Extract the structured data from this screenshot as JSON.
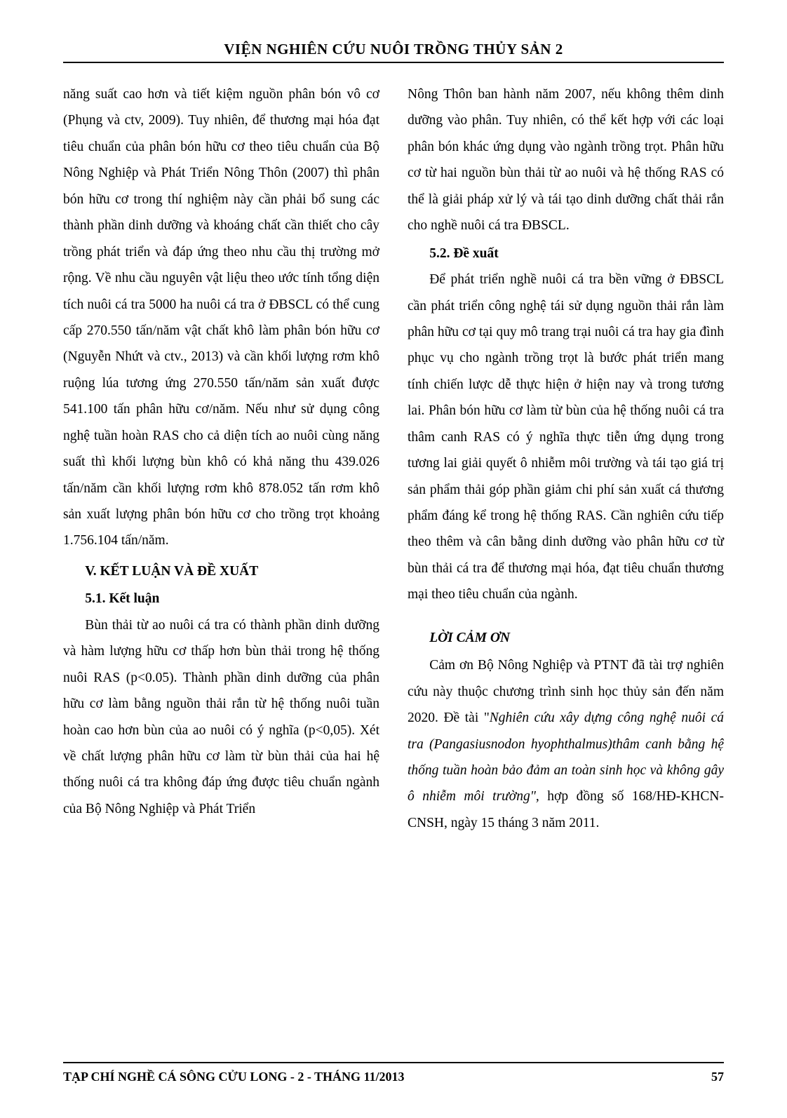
{
  "header": {
    "title": "VIỆN NGHIÊN CỨU NUÔI TRỒNG THỦY SẢN 2"
  },
  "left_col": {
    "p1": "năng suất cao hơn và tiết kiệm nguồn phân bón vô cơ (Phụng và ctv, 2009). Tuy nhiên, để thương mại hóa đạt tiêu chuẩn của phân bón hữu cơ theo tiêu chuẩn của Bộ Nông Nghiệp và Phát Triển Nông Thôn (2007) thì phân bón hữu cơ trong thí nghiệm này cần phải bổ sung các thành phần dinh dưỡng và khoáng chất cần thiết cho cây trồng phát triển và đáp ứng theo nhu cầu thị trường mở rộng. Về nhu cầu nguyên vật liệu theo ước tính tổng diện tích nuôi cá tra 5000 ha nuôi cá tra ở ĐBSCL có thể cung cấp 270.550 tấn/năm vật chất khô làm phân bón hữu cơ (Nguyễn Nhứt và ctv., 2013) và cần khối lượng rơm khô ruộng lúa tương ứng 270.550 tấn/năm sản xuất được 541.100 tấn phân hữu cơ/năm. Nếu như sử dụng công nghệ tuần hoàn RAS cho cả diện tích ao nuôi cùng năng suất thì khối lượng bùn khô có khả năng thu 439.026 tấn/năm cần khối lượng rơm khô 878.052 tấn rơm khô sản xuất lượng phân bón hữu cơ cho trồng trọt khoảng 1.756.104 tấn/năm.",
    "h5": "V. KẾT LUẬN VÀ ĐỀ XUẤT",
    "h51": "5.1. Kết luận",
    "p2": "Bùn thải từ ao nuôi cá tra có thành phần dinh dưỡng và hàm lượng hữu cơ thấp hơn bùn thải trong hệ thống nuôi RAS (p<0.05). Thành phần dinh dưỡng của phân hữu cơ làm bằng nguồn thải rắn từ hệ thống nuôi tuần hoàn cao hơn bùn của ao nuôi có ý nghĩa (p<0,05). Xét về chất lượng phân hữu cơ làm từ bùn thải của hai hệ thống nuôi cá tra không đáp ứng được tiêu chuẩn ngành của Bộ Nông Nghiệp và Phát Triển"
  },
  "right_col": {
    "p1": "Nông Thôn ban hành năm 2007, nếu không thêm dinh dưỡng vào phân. Tuy nhiên, có thể kết hợp với các loại phân bón khác ứng dụng vào ngành trồng trọt. Phân hữu cơ từ hai nguồn bùn thải từ ao nuôi và hệ thống RAS có thể là giải pháp xử lý và tái tạo dinh dưỡng chất thải rắn cho nghề nuôi cá tra ĐBSCL.",
    "h52": "5.2. Đề xuất",
    "p2": "Để phát triển nghề nuôi cá tra bền vững ở ĐBSCL cần phát triển công nghệ tái sử dụng nguồn thải rắn làm phân hữu cơ tại quy mô trang trại nuôi cá tra hay gia đình phục vụ cho ngành trồng trọt là bước phát triển mang tính chiến lược dễ thực hiện ở hiện nay và trong tương lai. Phân bón hữu cơ làm từ bùn của hệ thống nuôi cá tra thâm canh RAS có ý nghĩa thực tiễn ứng dụng trong tương lai giải quyết ô nhiễm môi trường và tái tạo giá trị sản phẩm thải góp phần giảm chi phí sản xuất cá thương phẩm đáng kể trong hệ thống RAS. Cần nghiên cứu tiếp theo thêm và cân bằng dinh dưỡng vào phân hữu cơ từ bùn thải cá tra để thương mại hóa, đạt tiêu chuẩn thương mại theo tiêu chuẩn của ngành.",
    "ack_heading": "LỜI CẢM ƠN",
    "ack_pre": "Cảm ơn Bộ Nông Nghiệp và PTNT đã tài trợ nghiên cứu này thuộc chương trình sinh học thủy sản đến năm 2020. Đề tài \"",
    "ack_italic": "Nghiên cứu xây dựng công nghệ nuôi cá tra (Pangasiusnodon hyophthalmus)thâm canh bằng hệ thống tuần hoàn bảo đảm an toàn sinh học và không gây ô nhiễm môi trường\",",
    "ack_post": " hợp đồng số 168/HĐ-KHCN-CNSH, ngày 15 tháng 3 năm 2011."
  },
  "footer": {
    "journal": "TẠP CHÍ NGHỀ CÁ SÔNG CỬU LONG - 2 - THÁNG 11/2013",
    "page": "57"
  },
  "style": {
    "font_size_body": 19.5,
    "font_size_header": 21,
    "font_size_footer": 18,
    "line_height": 1.92,
    "text_color": "#000000",
    "background_color": "#ffffff",
    "divider_color": "#000000"
  }
}
